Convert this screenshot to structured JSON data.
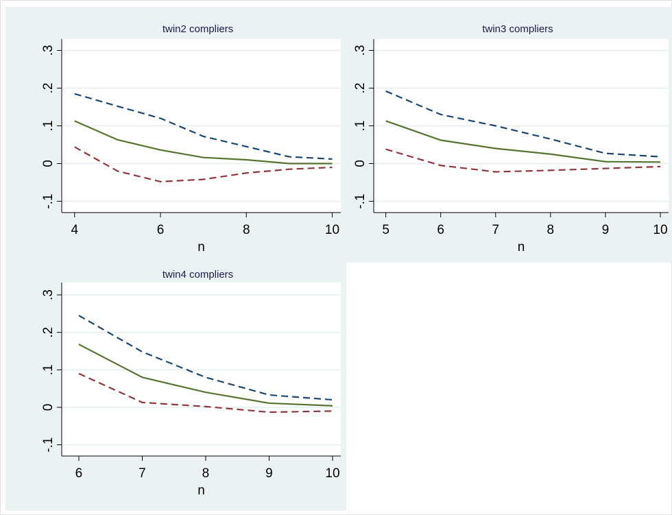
{
  "chart_data": [
    {
      "type": "line",
      "title": "twin2 compliers",
      "xlabel": "n",
      "x": [
        4,
        5,
        6,
        7,
        8,
        9,
        10
      ],
      "series": [
        {
          "color": "#1a476f",
          "dash": true,
          "values": [
            0.185,
            0.152,
            0.12,
            0.072,
            0.045,
            0.018,
            0.012
          ]
        },
        {
          "color": "#55752f",
          "dash": false,
          "values": [
            0.113,
            0.063,
            0.036,
            0.016,
            0.01,
            0.0,
            0.0
          ]
        },
        {
          "color": "#90353b",
          "dash": true,
          "values": [
            0.044,
            -0.02,
            -0.048,
            -0.042,
            -0.025,
            -0.015,
            -0.01
          ]
        }
      ],
      "xlim": [
        3.7,
        10.2
      ],
      "xticks": [
        4,
        6,
        8,
        10
      ],
      "ylim": [
        -0.13,
        0.33
      ],
      "yticks": [
        {
          "value": -0.1,
          "label": "-.1"
        },
        0,
        {
          "value": 0.1,
          "label": ".1"
        },
        {
          "value": 0.2,
          "label": ".2"
        },
        {
          "value": 0.3,
          "label": ".3"
        }
      ],
      "grid": true
    },
    {
      "type": "line",
      "title": "twin3 compliers",
      "xlabel": "n",
      "x": [
        5,
        6,
        7,
        8,
        9,
        10
      ],
      "series": [
        {
          "color": "#1a476f",
          "dash": true,
          "values": [
            0.192,
            0.13,
            0.1,
            0.065,
            0.027,
            0.018
          ]
        },
        {
          "color": "#55752f",
          "dash": false,
          "values": [
            0.113,
            0.062,
            0.04,
            0.025,
            0.005,
            0.004
          ]
        },
        {
          "color": "#90353b",
          "dash": true,
          "values": [
            0.038,
            -0.005,
            -0.022,
            -0.018,
            -0.013,
            -0.008
          ]
        }
      ],
      "xlim": [
        4.78,
        10.15
      ],
      "xticks": [
        5,
        6,
        7,
        8,
        9,
        10
      ],
      "ylim": [
        -0.13,
        0.33
      ],
      "yticks": [
        {
          "value": -0.1,
          "label": "-.1"
        },
        0,
        {
          "value": 0.1,
          "label": ".1"
        },
        {
          "value": 0.2,
          "label": ".2"
        },
        {
          "value": 0.3,
          "label": ".3"
        }
      ],
      "grid": true
    },
    {
      "type": "line",
      "title": "twin4 compliers",
      "xlabel": "n",
      "x": [
        6,
        7,
        8,
        9,
        10
      ],
      "series": [
        {
          "color": "#1a476f",
          "dash": true,
          "values": [
            0.245,
            0.148,
            0.08,
            0.033,
            0.02
          ]
        },
        {
          "color": "#55752f",
          "dash": false,
          "values": [
            0.168,
            0.08,
            0.04,
            0.011,
            0.004
          ]
        },
        {
          "color": "#90353b",
          "dash": true,
          "values": [
            0.09,
            0.013,
            0.002,
            -0.013,
            -0.01
          ]
        }
      ],
      "xlim": [
        5.73,
        10.13
      ],
      "xticks": [
        6,
        7,
        8,
        9,
        10
      ],
      "ylim": [
        -0.13,
        0.333
      ],
      "yticks": [
        {
          "value": -0.1,
          "label": "-.1"
        },
        0,
        {
          "value": 0.1,
          "label": ".1"
        },
        {
          "value": 0.2,
          "label": ".2"
        },
        {
          "value": 0.3,
          "label": ".3"
        }
      ],
      "grid": true
    }
  ]
}
